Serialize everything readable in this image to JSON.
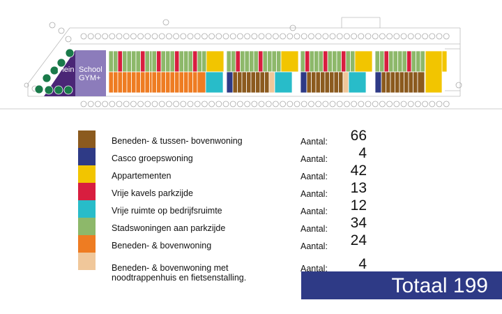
{
  "plan": {
    "label_plein": "Plein",
    "label_school": "School",
    "label_gym": "GYM+"
  },
  "colors": {
    "bruin": "#8b5a1e",
    "blauw": "#2e3a86",
    "geel": "#f2c500",
    "rood": "#d81e3f",
    "cyaan": "#28bcc9",
    "groen": "#8db86a",
    "oranje": "#ee7c22",
    "beige": "#f0c79a",
    "paars": "#8c7cbb",
    "donkerpaars": "#4a2676",
    "donkergroen": "#1a7a4a"
  },
  "legend": {
    "items": [
      {
        "label": "Beneden- & tussen-  bovenwoning",
        "aantal": "Aantal:",
        "count": "66",
        "color": "#8b5a1e"
      },
      {
        "label": "Casco groepswoning",
        "aantal": "Aantal:",
        "count": "4",
        "color": "#2e3a86"
      },
      {
        "label": "Appartementen",
        "aantal": "Aantal:",
        "count": "42",
        "color": "#f2c500"
      },
      {
        "label": "Vrije kavels parkzijde",
        "aantal": "Aantal:",
        "count": "13",
        "color": "#d81e3f"
      },
      {
        "label": "Vrije ruimte op bedrijfsruimte",
        "aantal": "Aantal:",
        "count": "12",
        "color": "#28bcc9"
      },
      {
        "label": "Stadswoningen aan parkzijde",
        "aantal": "Aantal:",
        "count": "34",
        "color": "#8db86a"
      },
      {
        "label": "Beneden- & bovenwoning",
        "aantal": "Aantal:",
        "count": "24",
        "color": "#ee7c22"
      },
      {
        "label": "Beneden- & bovenwoning met",
        "label2": "noodtrappenhuis en fietsenstalling.",
        "aantal": "Aantal:",
        "count": "4",
        "color": "#f0c79a"
      }
    ]
  },
  "totaal": {
    "text": "Totaal 199"
  }
}
